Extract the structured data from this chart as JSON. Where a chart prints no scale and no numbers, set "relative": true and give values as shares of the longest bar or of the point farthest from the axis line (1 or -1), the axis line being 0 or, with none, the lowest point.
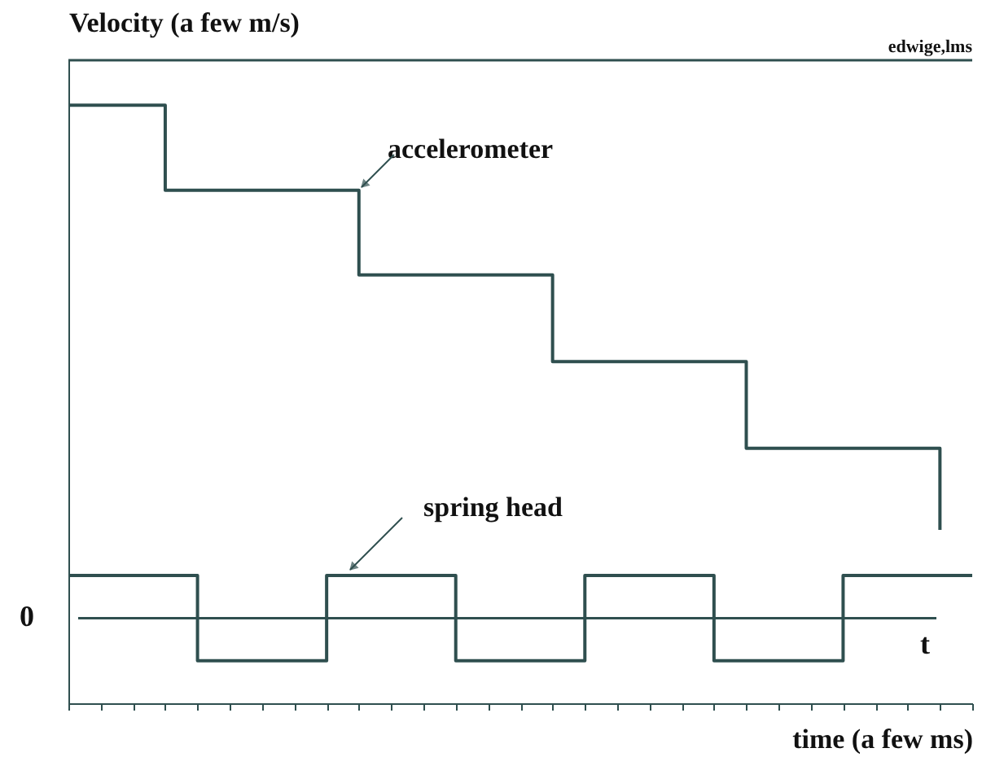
{
  "chart_data": {
    "type": "step",
    "relative": true,
    "xlabel": "time (a few ms)",
    "ylabel": "Velocity (a few m/s)",
    "categories": [
      null,
      null,
      null,
      null,
      null,
      null,
      null,
      null,
      null,
      null,
      null,
      null,
      null,
      null,
      null,
      null,
      null,
      null,
      null,
      null,
      null,
      null,
      null,
      null,
      null,
      null,
      null,
      null,
      null
    ],
    "series": [
      {
        "name": "accelerometer",
        "color": "#2f4f4f",
        "values": [
          1,
          1,
          1,
          0.834,
          0.834,
          0.834,
          0.834,
          0.834,
          0.834,
          0.669,
          0.669,
          0.669,
          0.669,
          0.669,
          0.669,
          0.5,
          0.5,
          0.5,
          0.5,
          0.5,
          0.5,
          0.331,
          0.331,
          0.331,
          0.331,
          0.331,
          0.331,
          0.172,
          null
        ]
      },
      {
        "name": "spring head",
        "color": "#2f4f4f",
        "values": [
          0.083,
          0.083,
          0.083,
          0.083,
          -0.083,
          -0.083,
          -0.083,
          -0.083,
          0.083,
          0.083,
          0.083,
          0.083,
          -0.083,
          -0.083,
          -0.083,
          -0.083,
          0.083,
          0.083,
          0.083,
          0.083,
          -0.083,
          -0.083,
          -0.083,
          -0.083,
          0.083,
          0.083,
          0.083,
          0.083,
          0.083
        ]
      }
    ],
    "annotations": [
      "0",
      "t",
      "edwige,lms"
    ]
  }
}
